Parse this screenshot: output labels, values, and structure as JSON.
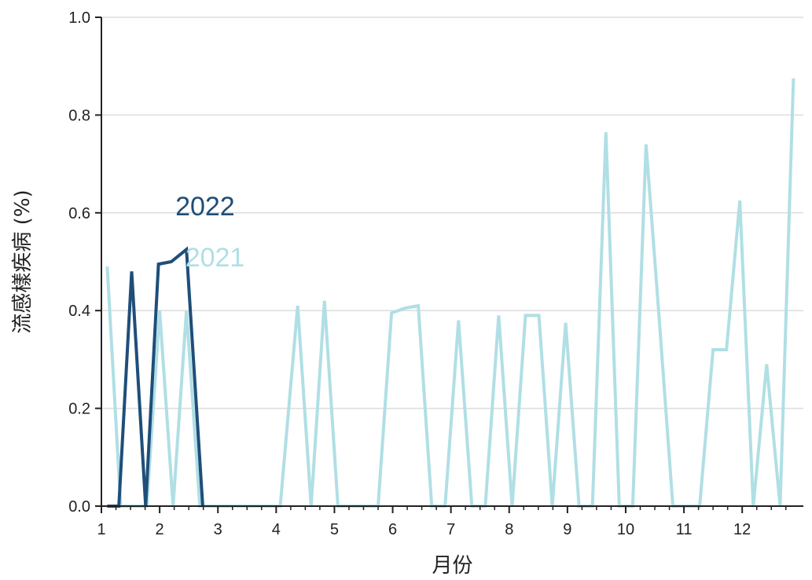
{
  "chart_data": {
    "type": "line",
    "xlabel": "月份",
    "ylabel": "流感樣疾病 (%)",
    "xlim": [
      1,
      13.05
    ],
    "ylim": [
      0,
      1.0
    ],
    "x_ticks": [
      "1",
      "2",
      "3",
      "4",
      "5",
      "6",
      "7",
      "8",
      "9",
      "10",
      "11",
      "12"
    ],
    "y_ticks": [
      "0.0",
      "0.2",
      "0.4",
      "0.6",
      "0.8",
      "1.0"
    ],
    "grid": "horizontal",
    "series": [
      {
        "name": "2021",
        "color": "#b0dfe5",
        "x": [
          1.1,
          1.33,
          1.56,
          1.78,
          2.0,
          2.23,
          2.46,
          2.69,
          2.92,
          3.15,
          3.38,
          3.61,
          3.84,
          4.07,
          4.37,
          4.6,
          4.83,
          5.06,
          5.29,
          5.52,
          5.75,
          5.98,
          6.21,
          6.44,
          6.67,
          6.9,
          7.13,
          7.36,
          7.59,
          7.82,
          8.05,
          8.28,
          8.51,
          8.74,
          8.97,
          9.2,
          9.43,
          9.66,
          9.89,
          10.12,
          10.35,
          10.58,
          10.81,
          11.04,
          11.27,
          11.5,
          11.73,
          11.96,
          12.19,
          12.42,
          12.65,
          12.88
        ],
        "y": [
          0.49,
          0.0,
          0.0,
          0.0,
          0.4,
          0.0,
          0.4,
          0.0,
          0.0,
          0.0,
          0.0,
          0.0,
          0.0,
          0.0,
          0.41,
          0.0,
          0.42,
          0.0,
          0.0,
          0.0,
          0.0,
          0.395,
          0.405,
          0.41,
          0.0,
          0.0,
          0.38,
          0.0,
          0.0,
          0.39,
          0.0,
          0.39,
          0.39,
          0.0,
          0.375,
          0.0,
          0.0,
          0.765,
          0.0,
          0.0,
          0.74,
          0.375,
          0.0,
          0.0,
          0.0,
          0.32,
          0.32,
          0.625,
          0.0,
          0.29,
          0.0,
          0.875
        ]
      },
      {
        "name": "2022",
        "color": "#1f4e79",
        "x": [
          1.1,
          1.3,
          1.52,
          1.76,
          1.98,
          2.2,
          2.46,
          2.74
        ],
        "y": [
          0.0,
          0.0,
          0.48,
          0.0,
          0.495,
          0.5,
          0.525,
          0.0
        ]
      }
    ],
    "series_labels": [
      {
        "name": "2022",
        "x": 2.78,
        "y": 0.595
      },
      {
        "name": "2021",
        "x": 2.95,
        "y": 0.49
      }
    ]
  }
}
